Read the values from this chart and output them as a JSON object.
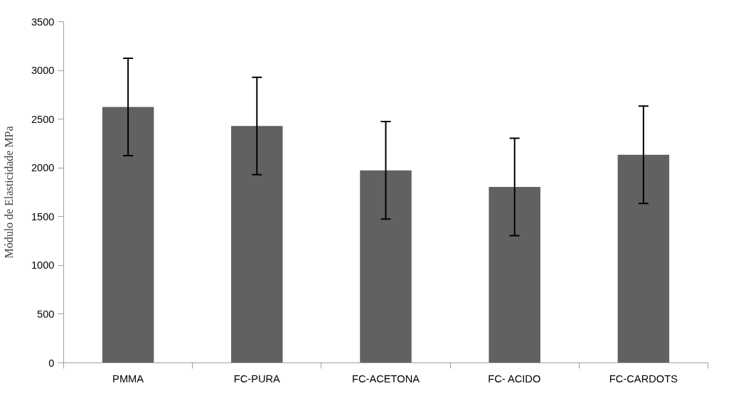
{
  "chart_data": {
    "type": "bar",
    "ylabel": "Módulo de Elasticidade MPa",
    "categories": [
      "PMMA",
      "FC-PURA",
      "FC-ACETONA",
      "FC- ACIDO",
      "FC-CARDOTS"
    ],
    "values": [
      2625,
      2430,
      1975,
      1805,
      2135
    ],
    "errors": [
      500,
      500,
      500,
      500,
      500
    ],
    "color": "#616161",
    "ylim": [
      0,
      3500
    ],
    "yticks": [
      0,
      500,
      1000,
      1500,
      2000,
      2500,
      3000,
      3500
    ],
    "grid": false
  }
}
